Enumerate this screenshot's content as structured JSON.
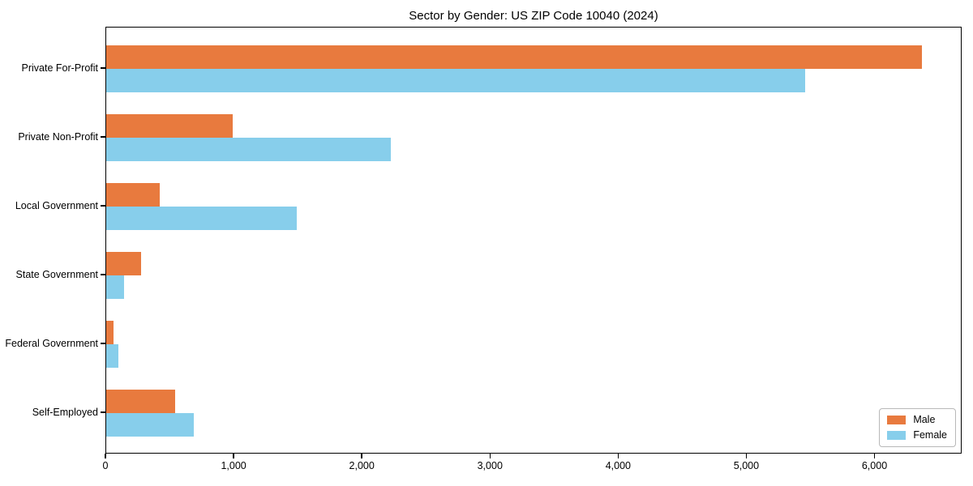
{
  "chart_data": {
    "type": "bar",
    "orientation": "horizontal",
    "title": "Sector by Gender: US ZIP Code 10040 (2024)",
    "categories": [
      "Private For-Profit",
      "Private Non-Profit",
      "Local Government",
      "State Government",
      "Federal Government",
      "Self-Employed"
    ],
    "series": [
      {
        "name": "Male",
        "color": "#E87A3E",
        "values": [
          6365,
          985,
          420,
          275,
          60,
          540
        ]
      },
      {
        "name": "Female",
        "color": "#87CEEB",
        "values": [
          5455,
          2220,
          1485,
          140,
          95,
          685
        ]
      }
    ],
    "xlabel": "",
    "ylabel": "",
    "xlim": [
      0,
      6680
    ],
    "xticks": [
      0,
      1000,
      2000,
      3000,
      4000,
      5000,
      6000
    ],
    "xtick_labels": [
      "0",
      "1,000",
      "2,000",
      "3,000",
      "4,000",
      "5,000",
      "6,000"
    ],
    "grid": false,
    "legend": {
      "position": "lower right",
      "entries": [
        "Male",
        "Female"
      ]
    },
    "colors": {
      "background": "#ffffff",
      "spine": "#000000",
      "text": "#000000",
      "legend_border": "#b8b8b8"
    }
  }
}
